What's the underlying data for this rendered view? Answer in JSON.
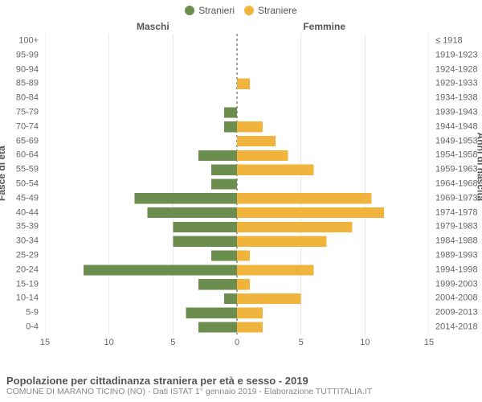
{
  "legend": {
    "male_label": "Stranieri",
    "female_label": "Straniere"
  },
  "headers": {
    "male": "Maschi",
    "female": "Femmine"
  },
  "axis_titles": {
    "left": "Fasce di età",
    "right": "Anni di nascita"
  },
  "colors": {
    "male": "#6b8e4e",
    "female": "#f0b43c",
    "grid": "#e6e6e6",
    "center": "#636363",
    "bg": "#ffffff",
    "text": "#666666"
  },
  "chart": {
    "type": "population-pyramid",
    "xlim": 15,
    "xtick_step": 5,
    "xticks": [
      "15",
      "10",
      "5",
      "0",
      "5",
      "10",
      "15"
    ],
    "bar_height_ratio": 0.74,
    "rows": [
      {
        "age": "100+",
        "birth": "≤ 1918",
        "m": 0,
        "f": 0
      },
      {
        "age": "95-99",
        "birth": "1919-1923",
        "m": 0,
        "f": 0
      },
      {
        "age": "90-94",
        "birth": "1924-1928",
        "m": 0,
        "f": 0
      },
      {
        "age": "85-89",
        "birth": "1929-1933",
        "m": 0,
        "f": 1
      },
      {
        "age": "80-84",
        "birth": "1934-1938",
        "m": 0,
        "f": 0
      },
      {
        "age": "75-79",
        "birth": "1939-1943",
        "m": 1,
        "f": 0
      },
      {
        "age": "70-74",
        "birth": "1944-1948",
        "m": 1,
        "f": 2
      },
      {
        "age": "65-69",
        "birth": "1949-1953",
        "m": 0,
        "f": 3
      },
      {
        "age": "60-64",
        "birth": "1954-1958",
        "m": 3,
        "f": 4
      },
      {
        "age": "55-59",
        "birth": "1959-1963",
        "m": 2,
        "f": 6
      },
      {
        "age": "50-54",
        "birth": "1964-1968",
        "m": 2,
        "f": 0
      },
      {
        "age": "45-49",
        "birth": "1969-1973",
        "m": 8,
        "f": 10.5
      },
      {
        "age": "40-44",
        "birth": "1974-1978",
        "m": 7,
        "f": 11.5
      },
      {
        "age": "35-39",
        "birth": "1979-1983",
        "m": 5,
        "f": 9
      },
      {
        "age": "30-34",
        "birth": "1984-1988",
        "m": 5,
        "f": 7
      },
      {
        "age": "25-29",
        "birth": "1989-1993",
        "m": 2,
        "f": 1
      },
      {
        "age": "20-24",
        "birth": "1994-1998",
        "m": 12,
        "f": 6
      },
      {
        "age": "15-19",
        "birth": "1999-2003",
        "m": 3,
        "f": 1
      },
      {
        "age": "10-14",
        "birth": "2004-2008",
        "m": 1,
        "f": 5
      },
      {
        "age": "5-9",
        "birth": "2009-2013",
        "m": 4,
        "f": 2
      },
      {
        "age": "0-4",
        "birth": "2014-2018",
        "m": 3,
        "f": 2
      }
    ]
  },
  "footer": {
    "title": "Popolazione per cittadinanza straniera per età e sesso - 2019",
    "sub": "COMUNE DI MARANO TICINO (NO) - Dati ISTAT 1° gennaio 2019 - Elaborazione TUTTITALIA.IT"
  }
}
